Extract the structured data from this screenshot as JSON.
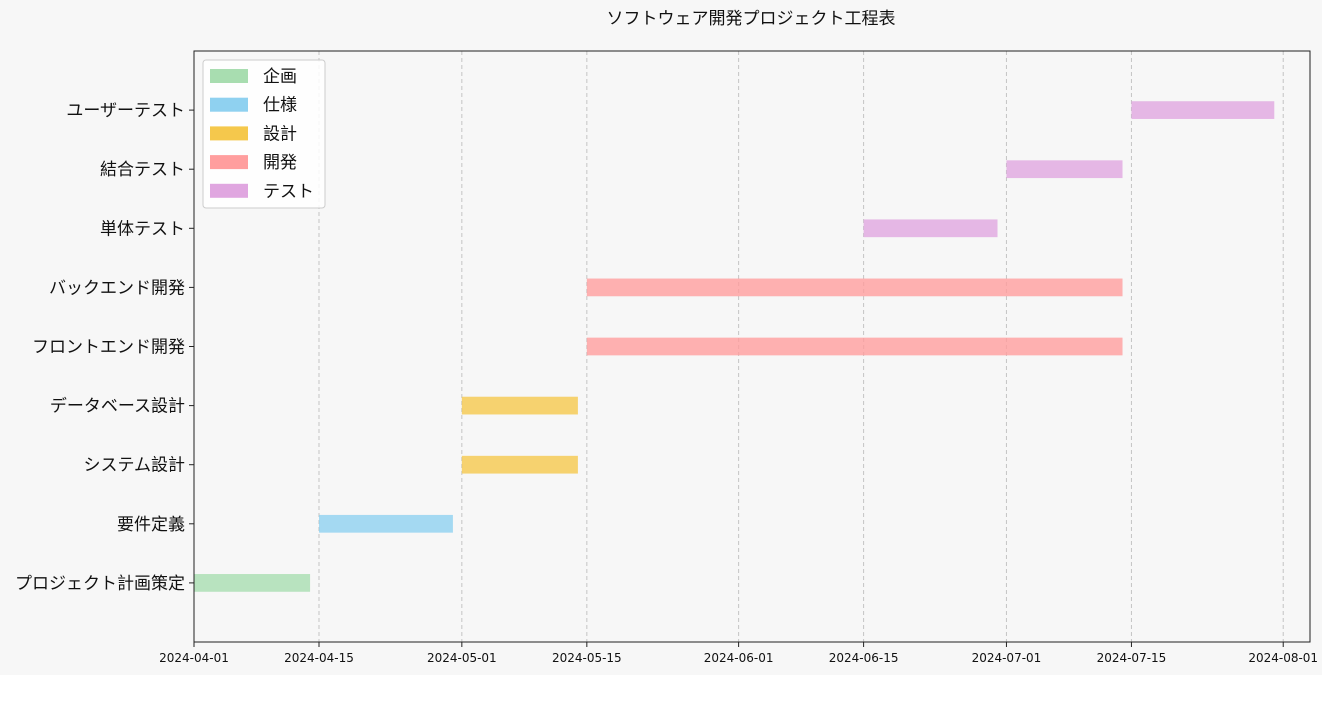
{
  "chart_data": {
    "type": "bar",
    "orientation": "horizontal",
    "title": "ソフトウェア開発プロジェクト工程表",
    "xlabel": "",
    "ylabel": "",
    "x_axis": "date",
    "xlim": [
      "2024-04-01",
      "2024-08-04"
    ],
    "x_ticks": [
      "2024-04-01",
      "2024-04-15",
      "2024-05-01",
      "2024-05-15",
      "2024-06-01",
      "2024-06-15",
      "2024-07-01",
      "2024-07-15",
      "2024-08-01"
    ],
    "grid": "x-dashed",
    "legend_position": "top-left",
    "categories": [
      "プロジェクト計画策定",
      "要件定義",
      "システム設計",
      "データベース設計",
      "フロントエンド開発",
      "バックエンド開発",
      "単体テスト",
      "結合テスト",
      "ユーザーテスト"
    ],
    "series": [
      {
        "name": "企画",
        "color": "#a8ddb0"
      },
      {
        "name": "仕様",
        "color": "#8fd1f0"
      },
      {
        "name": "設計",
        "color": "#f5c84c"
      },
      {
        "name": "開発",
        "color": "#ff9e9e"
      },
      {
        "name": "テスト",
        "color": "#e0a6e0"
      }
    ],
    "tasks": [
      {
        "task": "プロジェクト計画策定",
        "phase": "企画",
        "start": "2024-04-01",
        "end": "2024-04-14"
      },
      {
        "task": "要件定義",
        "phase": "仕様",
        "start": "2024-04-15",
        "end": "2024-04-30"
      },
      {
        "task": "システム設計",
        "phase": "設計",
        "start": "2024-05-01",
        "end": "2024-05-14"
      },
      {
        "task": "データベース設計",
        "phase": "設計",
        "start": "2024-05-01",
        "end": "2024-05-14"
      },
      {
        "task": "フロントエンド開発",
        "phase": "開発",
        "start": "2024-05-15",
        "end": "2024-07-14"
      },
      {
        "task": "バックエンド開発",
        "phase": "開発",
        "start": "2024-05-15",
        "end": "2024-07-14"
      },
      {
        "task": "単体テスト",
        "phase": "テスト",
        "start": "2024-06-15",
        "end": "2024-06-30"
      },
      {
        "task": "結合テスト",
        "phase": "テスト",
        "start": "2024-07-01",
        "end": "2024-07-14"
      },
      {
        "task": "ユーザーテスト",
        "phase": "テスト",
        "start": "2024-07-15",
        "end": "2024-07-31"
      }
    ]
  }
}
